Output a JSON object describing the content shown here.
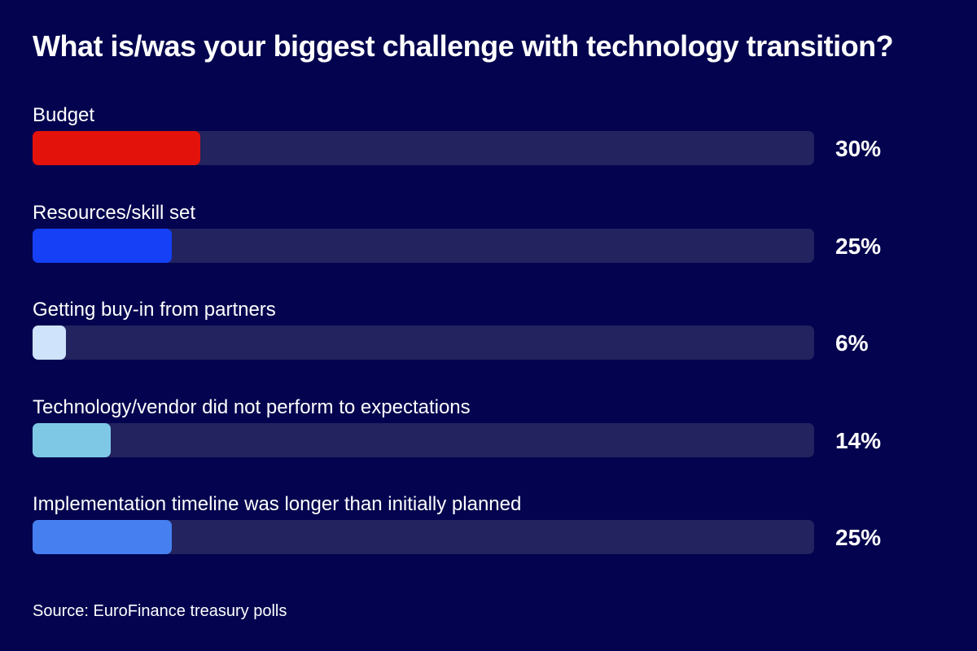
{
  "chart_data": {
    "type": "bar",
    "orientation": "horizontal",
    "title": "What is/was your biggest challenge with technology transition?",
    "categories": [
      "Budget",
      "Resources/skill set",
      "Getting buy-in from partners",
      "Technology/vendor did not perform to expectations",
      "Implementation timeline was longer than initially planned"
    ],
    "values": [
      30,
      25,
      6,
      14,
      25
    ],
    "value_labels": [
      "30%",
      "25%",
      "6%",
      "14%",
      "25%"
    ],
    "colors": [
      "#e3120b",
      "#1540f5",
      "#cfe3fb",
      "#7ec8e6",
      "#4680f0"
    ],
    "track_color": "#22235f",
    "xlim": [
      0,
      140
    ],
    "source": "Source: EuroFinance treasury polls"
  }
}
